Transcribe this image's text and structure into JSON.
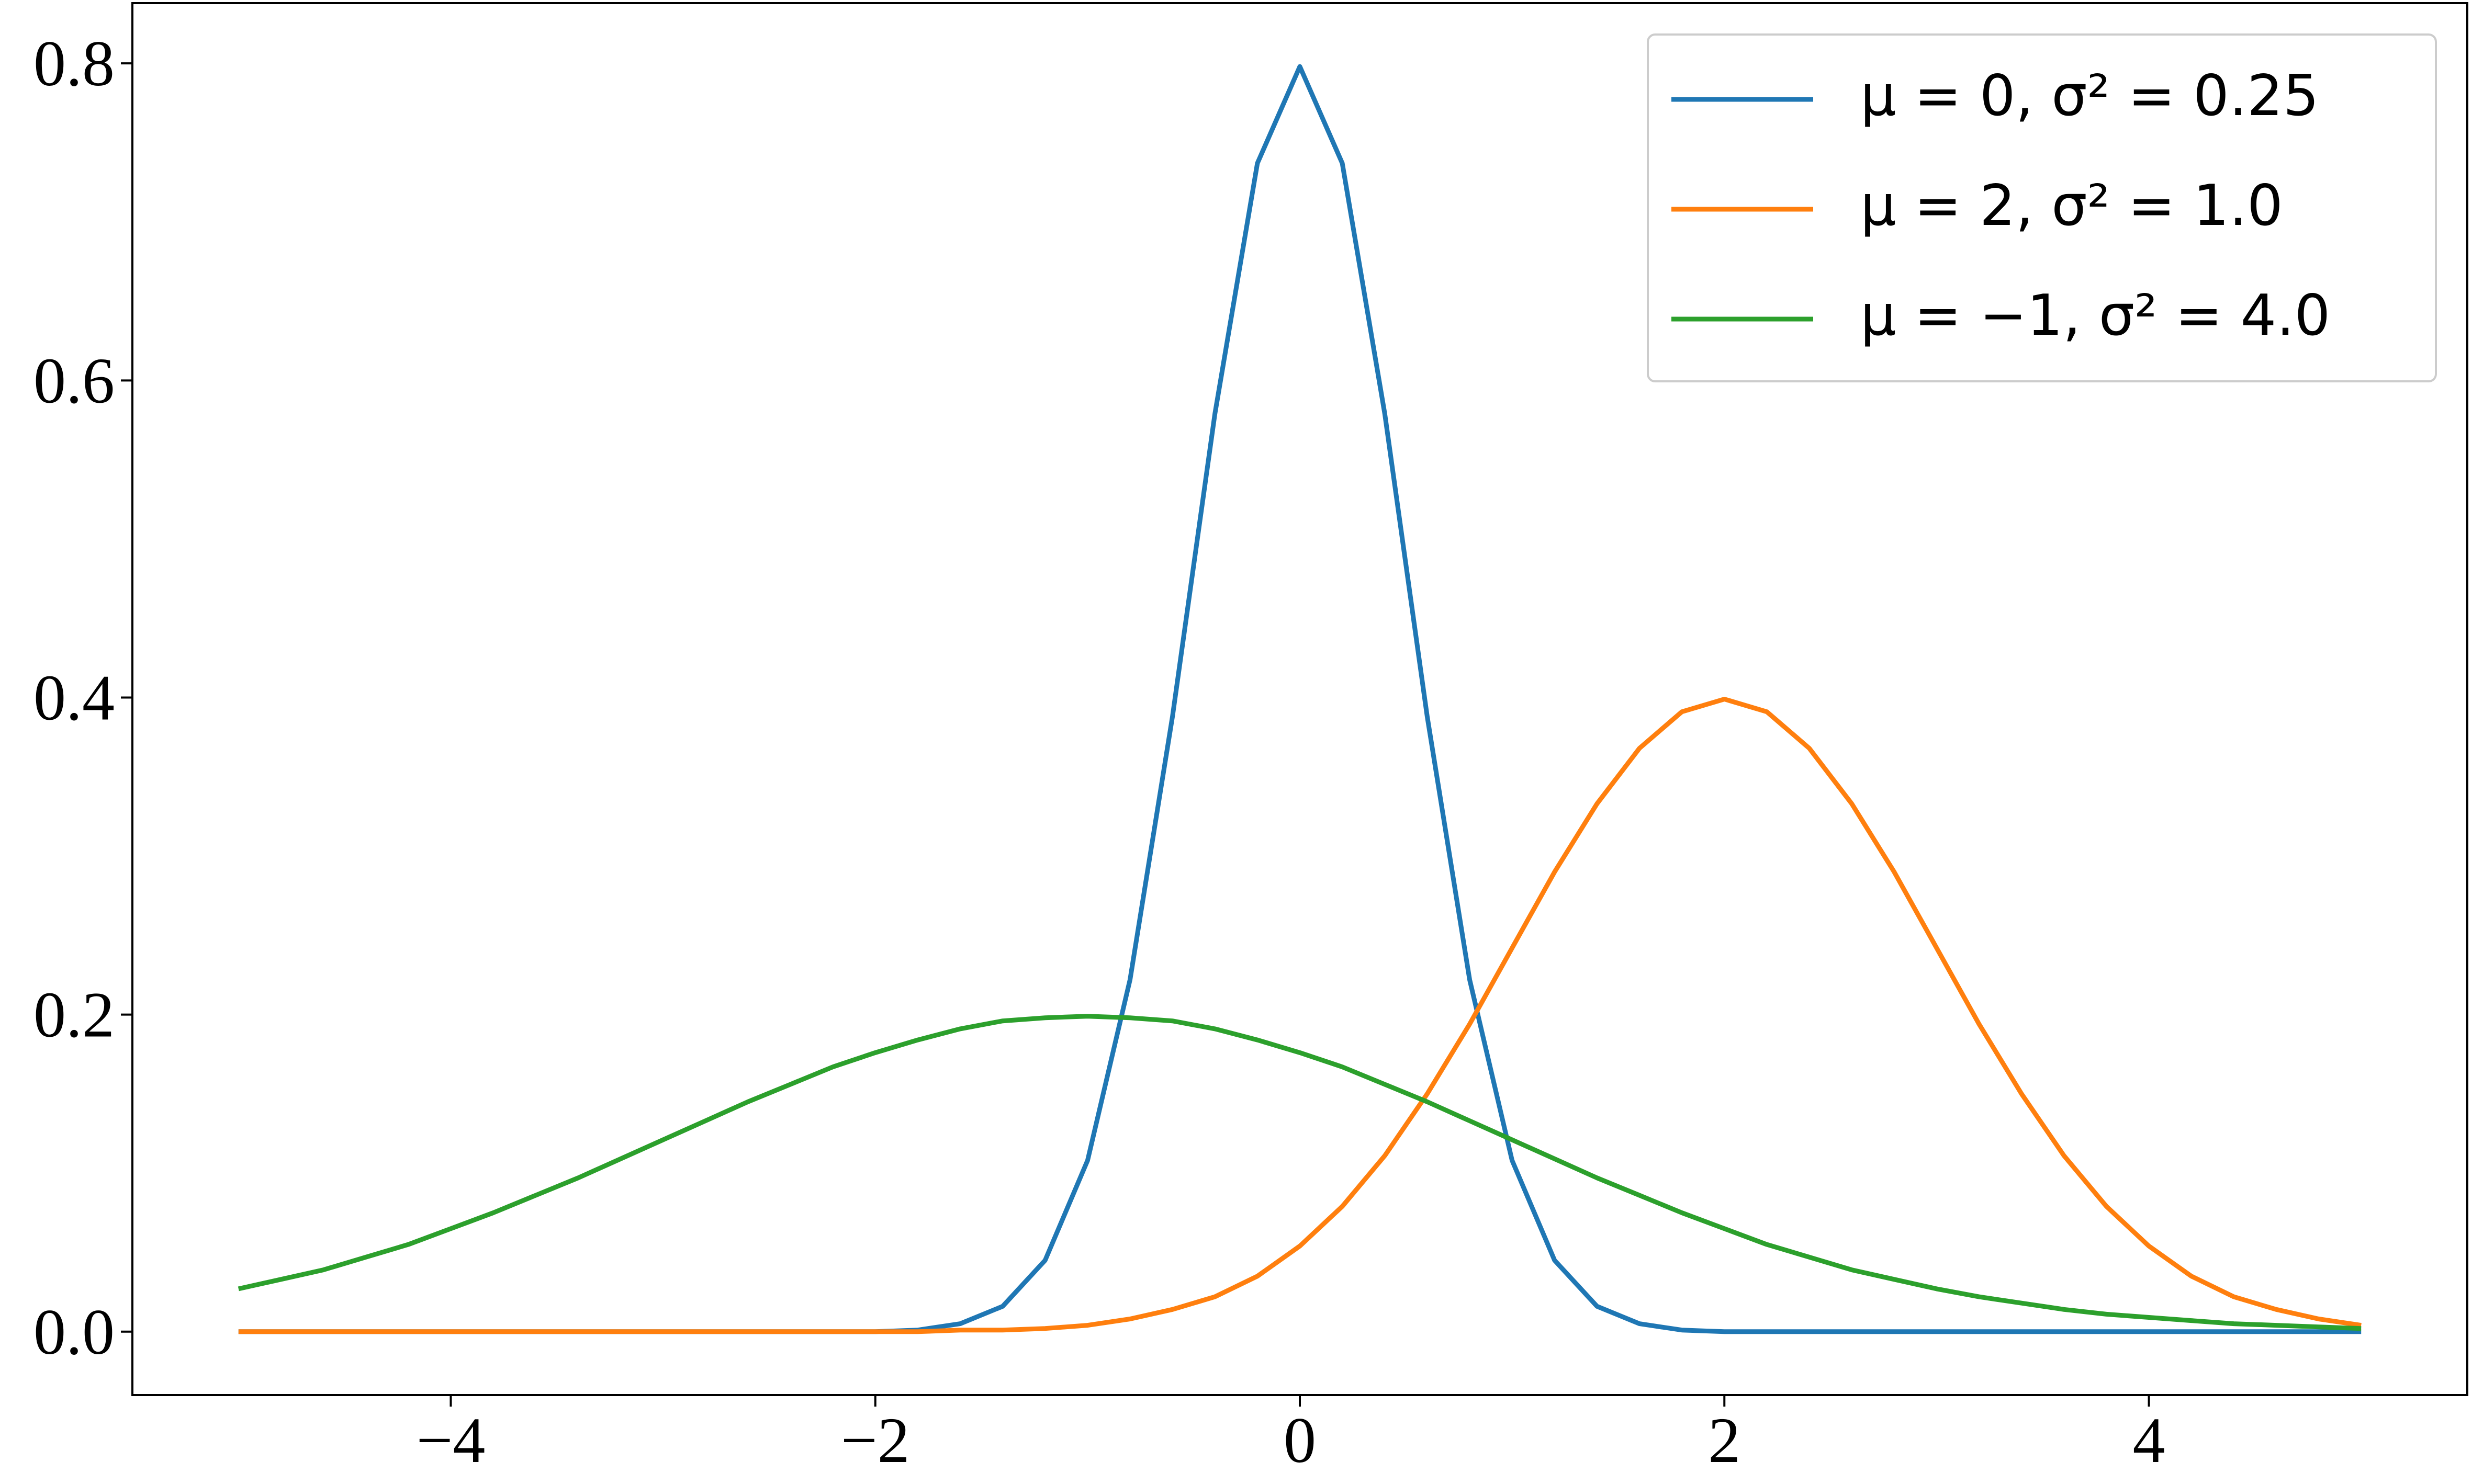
{
  "chart_data": {
    "type": "line",
    "x": [
      -5,
      -4.8,
      -4.6,
      -4.4,
      -4.2,
      -4,
      -3.8,
      -3.6,
      -3.4,
      -3.2,
      -3,
      -2.8,
      -2.6,
      -2.4,
      -2.2,
      -2,
      -1.8,
      -1.6,
      -1.4,
      -1.2,
      -1,
      -0.8,
      -0.6,
      -0.4,
      -0.2,
      0,
      0.2,
      0.4,
      0.6,
      0.8,
      1,
      1.2,
      1.4,
      1.6,
      1.8,
      2,
      2.2,
      2.4,
      2.6,
      2.8,
      3,
      3.2,
      3.4,
      3.6,
      3.8,
      4,
      4.2,
      4.4,
      4.6,
      4.8,
      5
    ],
    "series": [
      {
        "name": "μ = 0, σ² = 0.25",
        "color": "#1f77b4",
        "values": [
          0,
          0,
          0,
          0,
          0,
          0,
          0,
          0,
          0,
          0,
          0,
          0,
          0,
          0,
          0,
          0,
          0.001,
          0.005,
          0.016,
          0.045,
          0.108,
          0.222,
          0.388,
          0.579,
          0.737,
          0.798,
          0.737,
          0.579,
          0.388,
          0.222,
          0.108,
          0.045,
          0.016,
          0.005,
          0.001,
          0,
          0,
          0,
          0,
          0,
          0,
          0,
          0,
          0,
          0,
          0,
          0,
          0,
          0,
          0,
          0
        ]
      },
      {
        "name": "μ = 2, σ² = 1.0",
        "color": "#ff7f0e",
        "values": [
          0,
          0,
          0,
          0,
          0,
          0,
          0,
          0,
          0,
          0,
          0,
          0,
          0,
          0,
          0,
          0,
          0,
          0.001,
          0.001,
          0.002,
          0.004,
          0.008,
          0.014,
          0.022,
          0.035,
          0.054,
          0.079,
          0.111,
          0.15,
          0.194,
          0.242,
          0.29,
          0.333,
          0.368,
          0.391,
          0.399,
          0.391,
          0.368,
          0.333,
          0.29,
          0.242,
          0.194,
          0.15,
          0.111,
          0.079,
          0.054,
          0.035,
          0.022,
          0.014,
          0.008,
          0.004
        ]
      },
      {
        "name": "μ = −1, σ² = 4.0",
        "color": "#2ca02c",
        "values": [
          0.027,
          0.033,
          0.039,
          0.047,
          0.055,
          0.065,
          0.075,
          0.086,
          0.097,
          0.109,
          0.121,
          0.133,
          0.145,
          0.156,
          0.167,
          0.176,
          0.184,
          0.191,
          0.196,
          0.198,
          0.199,
          0.198,
          0.196,
          0.191,
          0.184,
          0.176,
          0.167,
          0.156,
          0.145,
          0.133,
          0.121,
          0.109,
          0.097,
          0.086,
          0.075,
          0.065,
          0.055,
          0.047,
          0.039,
          0.033,
          0.027,
          0.022,
          0.018,
          0.014,
          0.011,
          0.009,
          0.007,
          0.005,
          0.004,
          0.003,
          0.002
        ]
      }
    ],
    "xlim": [
      -5.5,
      5.5
    ],
    "ylim": [
      -0.04,
      0.838
    ],
    "xticks": [
      {
        "value": -4,
        "label": "−4"
      },
      {
        "value": -2,
        "label": "−2"
      },
      0,
      2,
      4
    ],
    "yticks": [
      {
        "value": 0,
        "label": "0.0"
      },
      0.2,
      0.4,
      0.6,
      0.8
    ],
    "grid": false,
    "legend": "upper right"
  }
}
